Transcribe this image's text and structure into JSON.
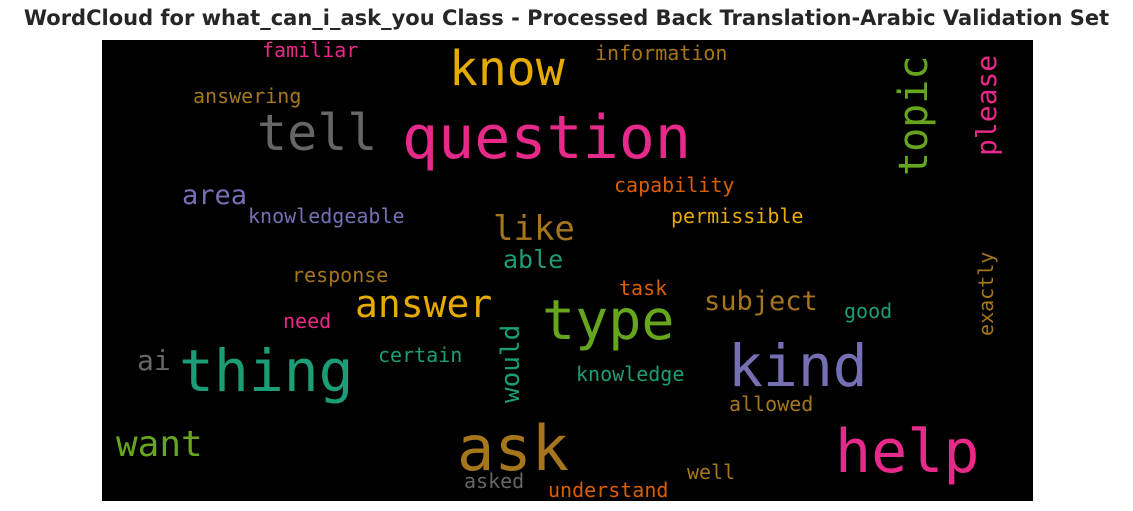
{
  "title": "WordCloud for what_can_i_ask_you Class - Processed Back Translation-Arabic Validation Set",
  "palette": {
    "background": "#000000",
    "pink": "#e7298a",
    "gold": "#e6ab02",
    "olive": "#a6761d",
    "gray": "#666666",
    "green": "#66a61e",
    "teal": "#1b9e77",
    "purple": "#7570b3",
    "orange": "#d95f02"
  },
  "words": {
    "question": "question",
    "thing": "thing",
    "kind": "kind",
    "type": "type",
    "ask": "ask",
    "help": "help",
    "know": "know",
    "tell": "tell",
    "topic": "topic",
    "answer": "answer",
    "want": "want",
    "like": "like",
    "please": "please",
    "subject": "subject",
    "area": "area",
    "able": "able",
    "would": "would",
    "exactly": "exactly",
    "familiar": "familiar",
    "information": "information",
    "answering": "answering",
    "capability": "capability",
    "permissible": "permissible",
    "knowledgeable": "knowledgeable",
    "response": "response",
    "task": "task",
    "need": "need",
    "good": "good",
    "ai": "ai",
    "certain": "certain",
    "knowledge": "knowledge",
    "allowed": "allowed",
    "well": "well",
    "asked": "asked",
    "understand": "understand"
  }
}
